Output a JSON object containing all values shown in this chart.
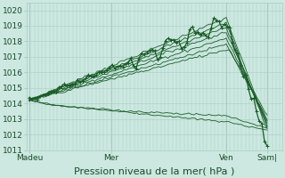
{
  "xlabel": "Pression niveau de la mer( hPa )",
  "bg_color": "#cce8e0",
  "plot_bg_color": "#cce8e0",
  "grid_color": "#aaccc4",
  "line_color": "#1a5c28",
  "ylim": [
    1011,
    1020.5
  ],
  "xlim": [
    0,
    100
  ],
  "xtick_labels": [
    "Madeu",
    "Mer",
    "Ven",
    "Sam|"
  ],
  "xtick_positions": [
    1,
    33,
    78,
    94
  ],
  "ytick_labels": [
    "1011",
    "1012",
    "1013",
    "1014",
    "1015",
    "1016",
    "1017",
    "1018",
    "1019",
    "1020"
  ],
  "ytick_values": [
    1011,
    1012,
    1013,
    1014,
    1015,
    1016,
    1017,
    1018,
    1019,
    1020
  ],
  "xlabel_fontsize": 8,
  "tick_fontsize": 6.5
}
